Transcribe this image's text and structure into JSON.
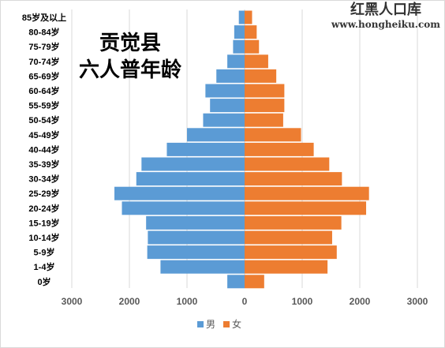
{
  "title": {
    "line1": "贡觉县",
    "line2": "六人普年龄"
  },
  "watermark": {
    "name": "红黑人口库",
    "url": "www.hongheiku.com"
  },
  "colors": {
    "male": "#5b9bd5",
    "female": "#ed7d31",
    "grid": "#d9d9d9",
    "axis_text": "#595959"
  },
  "chart_data": {
    "type": "bar",
    "orientation": "horizontal",
    "categories": [
      "85岁及以上",
      "80-84岁",
      "75-79岁",
      "70-74岁",
      "65-69岁",
      "60-64岁",
      "55-59岁",
      "50-54岁",
      "45-49岁",
      "40-44岁",
      "35-39岁",
      "30-34岁",
      "25-29岁",
      "20-24岁",
      "15-19岁",
      "10-14岁",
      "5-9岁",
      "1-4岁",
      "0岁"
    ],
    "series": [
      {
        "name": "男",
        "values": [
          100,
          180,
          200,
          300,
          490,
          680,
          600,
          720,
          1000,
          1350,
          1790,
          1880,
          2260,
          2130,
          1710,
          1680,
          1690,
          1460,
          300
        ]
      },
      {
        "name": "女",
        "values": [
          130,
          210,
          250,
          410,
          550,
          690,
          690,
          670,
          980,
          1200,
          1470,
          1690,
          2160,
          2110,
          1680,
          1520,
          1600,
          1440,
          340
        ]
      }
    ],
    "x_ticks": [
      "3000",
      "2000",
      "1000",
      "0",
      "1000",
      "2000",
      "3000"
    ],
    "xlim": [
      -3000,
      3000
    ],
    "grid": true,
    "legend_position": "bottom"
  }
}
